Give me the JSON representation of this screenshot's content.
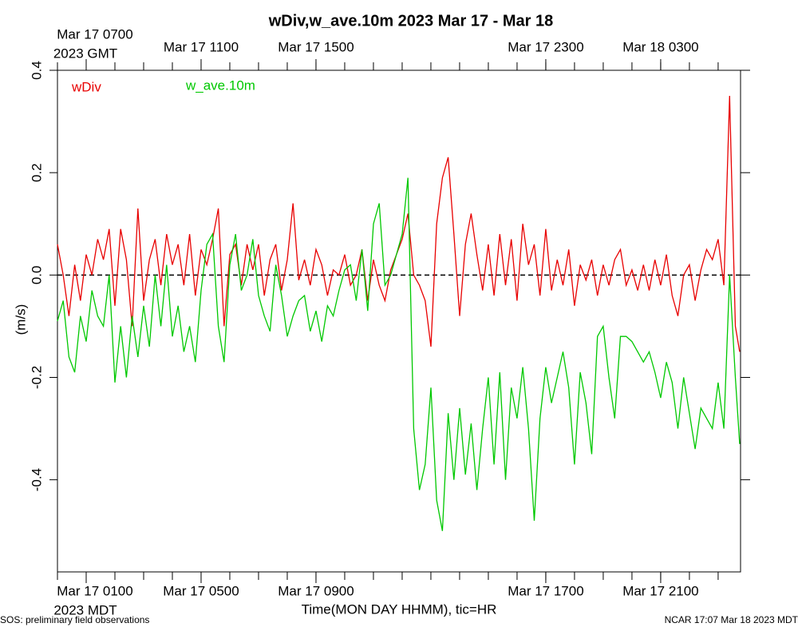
{
  "chart_data": {
    "type": "line",
    "title": "wDiv,w_ave.10m 2023 Mar 17 - Mar 18",
    "ylabel": "(m/s)",
    "xlabel": "Time(MON DAY HHMM), tic=HR",
    "footer_left": "SOS: preliminary field observations",
    "footer_right": "NCAR 17:07 Mar 18 2023 MDT",
    "x_bottom_zone": "2023 MDT",
    "x_top_zone": "2023 GMT",
    "xlim": [
      0,
      23.78
    ],
    "ylim": [
      -0.58,
      0.4
    ],
    "yticks": [
      -0.4,
      -0.2,
      {
        "value": 0,
        "label": "0.0"
      },
      0.2,
      0.4
    ],
    "xticks": [
      {
        "value": 1,
        "label": "Mar 17 0100"
      },
      {
        "value": 5,
        "label": "Mar 17 0500"
      },
      {
        "value": 9,
        "label": "Mar 17 0900"
      },
      {
        "value": 17,
        "label": "Mar 17 1700"
      },
      {
        "value": 21,
        "label": "Mar 17 2100"
      }
    ],
    "xticks_top": [
      {
        "value": 1,
        "label": "Mar 17 0700"
      },
      {
        "value": 5,
        "label": "Mar 17 1100"
      },
      {
        "value": 9,
        "label": "Mar 17 1500"
      },
      {
        "value": 17,
        "label": "Mar 17 2300"
      },
      {
        "value": 21,
        "label": "Mar 18 0300"
      }
    ],
    "xminor": [
      0,
      1,
      2,
      3,
      4,
      5,
      6,
      7,
      8,
      9,
      10,
      11,
      12,
      13,
      14,
      15,
      16,
      17,
      18,
      19,
      20,
      21,
      22,
      23
    ],
    "reference_line": 0,
    "x": [
      0,
      0.2,
      0.4,
      0.6,
      0.8,
      1,
      1.2,
      1.4,
      1.6,
      1.8,
      2,
      2.2,
      2.4,
      2.6,
      2.8,
      3,
      3.2,
      3.4,
      3.6,
      3.8,
      4,
      4.2,
      4.4,
      4.6,
      4.8,
      5,
      5.2,
      5.4,
      5.6,
      5.8,
      6,
      6.2,
      6.4,
      6.6,
      6.8,
      7,
      7.2,
      7.4,
      7.6,
      7.8,
      8,
      8.2,
      8.4,
      8.6,
      8.8,
      9,
      9.2,
      9.4,
      9.6,
      9.8,
      10,
      10.2,
      10.4,
      10.6,
      10.8,
      11,
      11.2,
      11.4,
      11.6,
      11.8,
      12,
      12.2,
      12.4,
      12.6,
      12.8,
      13,
      13.2,
      13.4,
      13.6,
      13.8,
      14,
      14.2,
      14.4,
      14.6,
      14.8,
      15,
      15.2,
      15.4,
      15.6,
      15.8,
      16,
      16.2,
      16.4,
      16.6,
      16.8,
      17,
      17.2,
      17.4,
      17.6,
      17.8,
      18,
      18.2,
      18.4,
      18.6,
      18.8,
      19,
      19.2,
      19.4,
      19.6,
      19.8,
      20,
      20.2,
      20.4,
      20.6,
      20.8,
      21,
      21.2,
      21.4,
      21.6,
      21.8,
      22,
      22.2,
      22.4,
      22.6,
      22.8,
      23,
      23.2,
      23.4,
      23.6,
      23.75
    ],
    "series": [
      {
        "name": "wDiv",
        "color": "#e80000",
        "values": [
          0.06,
          0,
          -0.08,
          0.02,
          -0.05,
          0.04,
          0,
          0.07,
          0.03,
          0.09,
          -0.06,
          0.09,
          0.03,
          -0.1,
          0.13,
          -0.05,
          0.03,
          0.07,
          -0.02,
          0.08,
          0.02,
          0.06,
          -0.02,
          0.08,
          -0.04,
          0.05,
          0.02,
          0.07,
          0.13,
          -0.1,
          0.04,
          0.06,
          -0.02,
          0.06,
          0.01,
          0.06,
          -0.04,
          0.03,
          0.06,
          -0.03,
          0.03,
          0.14,
          -0.01,
          0.03,
          -0.02,
          0.05,
          0.02,
          -0.04,
          0.01,
          0,
          0.04,
          -0.02,
          0,
          0.05,
          -0.05,
          0.03,
          -0.02,
          -0.05,
          0.01,
          0.04,
          0.07,
          0.12,
          0,
          -0.02,
          -0.05,
          -0.14,
          0.1,
          0.19,
          0.23,
          0.08,
          -0.08,
          0.06,
          0.12,
          0.04,
          -0.03,
          0.06,
          -0.04,
          0.08,
          -0.02,
          0.07,
          -0.05,
          0.1,
          0.02,
          0.06,
          -0.04,
          0.09,
          -0.03,
          0.03,
          -0.02,
          0.05,
          -0.06,
          0.02,
          -0.01,
          0.03,
          -0.04,
          0.02,
          -0.02,
          0.03,
          0.05,
          -0.02,
          0.01,
          -0.03,
          0.02,
          -0.03,
          0.03,
          -0.02,
          0.04,
          -0.04,
          -0.08,
          0,
          0.02,
          -0.05,
          0.01,
          0.05,
          0.03,
          0.07,
          -0.02,
          0.35,
          -0.1,
          -0.15
        ]
      },
      {
        "name": "w_ave.10m",
        "color": "#00c800",
        "values": [
          -0.09,
          -0.05,
          -0.16,
          -0.19,
          -0.08,
          -0.13,
          -0.03,
          -0.08,
          -0.1,
          0,
          -0.21,
          -0.1,
          -0.2,
          -0.08,
          -0.16,
          -0.06,
          -0.14,
          0,
          -0.1,
          0.02,
          -0.12,
          -0.06,
          -0.15,
          -0.1,
          -0.17,
          -0.03,
          0.06,
          0.08,
          -0.1,
          -0.17,
          0.02,
          0.08,
          -0.03,
          0,
          0.07,
          -0.04,
          -0.08,
          -0.11,
          0.02,
          -0.04,
          -0.12,
          -0.08,
          -0.05,
          -0.04,
          -0.11,
          -0.07,
          -0.13,
          -0.06,
          -0.08,
          -0.03,
          0.01,
          0.02,
          -0.05,
          0.05,
          -0.07,
          0.1,
          0.14,
          -0.02,
          0,
          0.04,
          0.08,
          0.19,
          -0.3,
          -0.42,
          -0.37,
          -0.22,
          -0.44,
          -0.5,
          -0.27,
          -0.4,
          -0.26,
          -0.39,
          -0.29,
          -0.42,
          -0.3,
          -0.2,
          -0.37,
          -0.19,
          -0.4,
          -0.22,
          -0.28,
          -0.18,
          -0.3,
          -0.48,
          -0.28,
          -0.18,
          -0.25,
          -0.2,
          -0.15,
          -0.22,
          -0.37,
          -0.19,
          -0.25,
          -0.35,
          -0.12,
          -0.1,
          -0.2,
          -0.28,
          -0.12,
          -0.12,
          -0.13,
          -0.15,
          -0.17,
          -0.15,
          -0.19,
          -0.24,
          -0.17,
          -0.21,
          -0.3,
          -0.2,
          -0.27,
          -0.34,
          -0.26,
          -0.28,
          -0.3,
          -0.21,
          -0.3,
          0,
          -0.2,
          -0.33
        ]
      }
    ]
  }
}
